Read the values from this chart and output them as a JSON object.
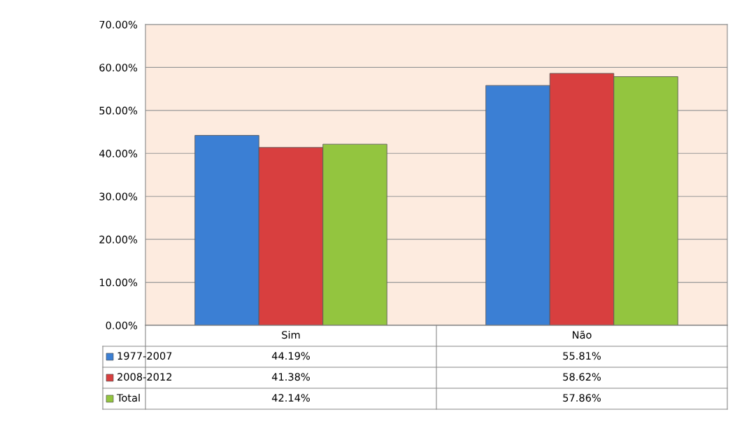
{
  "chart_data": {
    "type": "bar",
    "categories": [
      "Sim",
      "Não"
    ],
    "series": [
      {
        "name": "1977-2007",
        "color": "#3b7fd4",
        "values": [
          44.19,
          55.81
        ]
      },
      {
        "name": "2008-2012",
        "color": "#d83f3f",
        "values": [
          41.38,
          58.62
        ]
      },
      {
        "name": "Total",
        "color": "#93c53f",
        "values": [
          42.14,
          57.86
        ]
      }
    ],
    "ylim": [
      0,
      70
    ],
    "yticks": [
      {
        "value": 0,
        "label": "0.00%"
      },
      {
        "value": 10,
        "label": "10.00%"
      },
      {
        "value": 20,
        "label": "20.00%"
      },
      {
        "value": 30,
        "label": "30.00%"
      },
      {
        "value": 40,
        "label": "40.00%"
      },
      {
        "value": 50,
        "label": "50.00%"
      },
      {
        "value": 60,
        "label": "60.00%"
      },
      {
        "value": 70,
        "label": "70.00%"
      }
    ],
    "grid": "y",
    "legend": "bottom",
    "annotations": [
      "44.19%",
      "55.81%",
      "41.38%",
      "58.62%",
      "42.14%",
      "57.86%"
    ]
  }
}
